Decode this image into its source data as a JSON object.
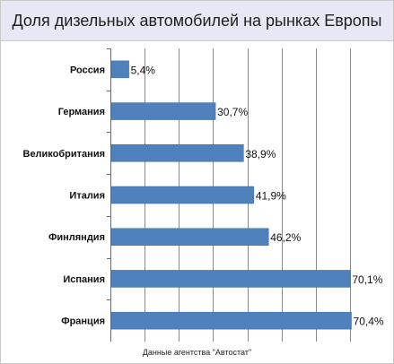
{
  "chart_data": {
    "type": "bar",
    "orientation": "horizontal",
    "title": "Доля дизельных автомобилей на рынках Европы",
    "categories": [
      "Россия",
      "Германия",
      "Великобритания",
      "Италия",
      "Финляндия",
      "Испания",
      "Франция"
    ],
    "values": [
      5.4,
      30.7,
      38.9,
      41.9,
      46.2,
      70.1,
      70.4
    ],
    "data_labels": [
      "5,4%",
      "30,7%",
      "38,9%",
      "41,9%",
      "46,2%",
      "70,1%",
      "70,4%"
    ],
    "xlabel": "",
    "ylabel": "",
    "xlim": [
      0,
      70
    ],
    "grid": "vertical",
    "legend": "none",
    "bar_color": "#4f81bd",
    "grid_color": "#8a8a8a"
  },
  "footer": "Данные агентства \"Автостат\""
}
